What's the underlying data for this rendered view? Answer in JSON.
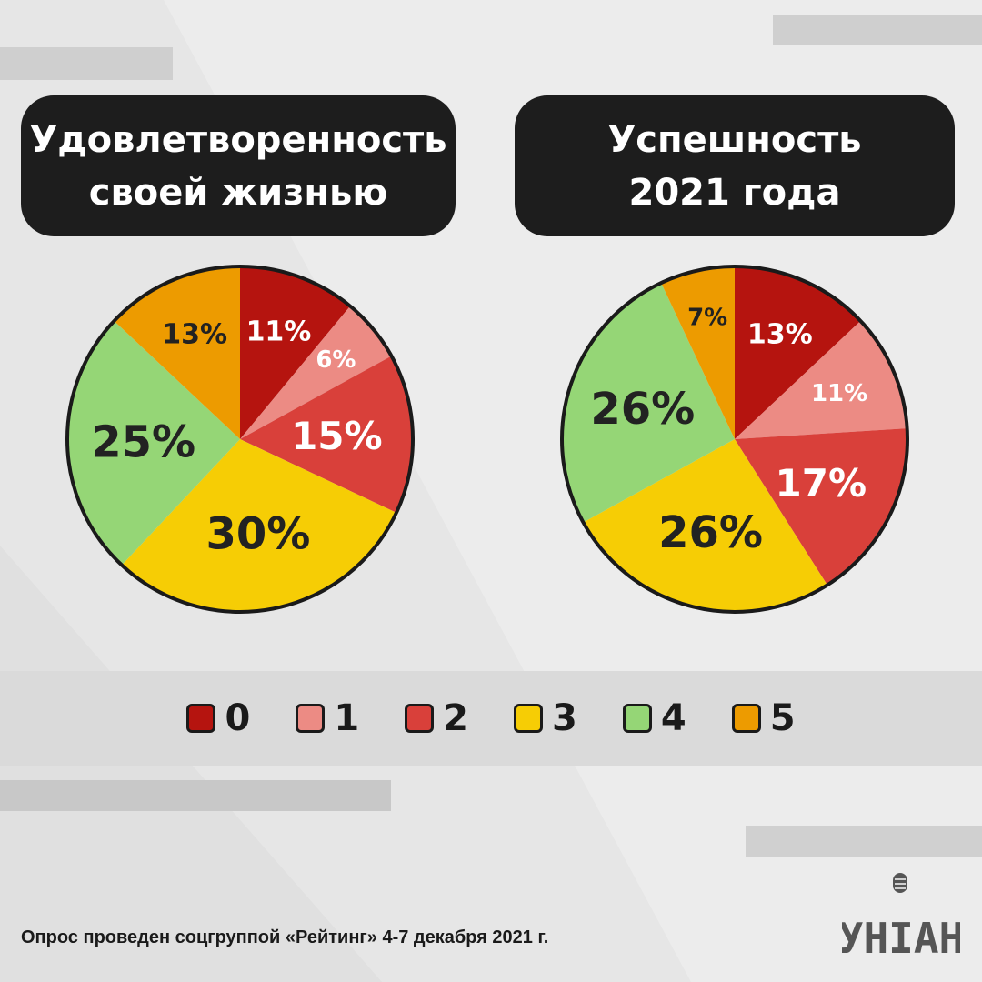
{
  "chart_data": [
    {
      "type": "pie",
      "title": "Удовлетворенность своей жизнью",
      "title_lines": [
        "Удовлетворенность",
        "своей жизнью"
      ],
      "categories": [
        "0",
        "1",
        "2",
        "3",
        "4",
        "5"
      ],
      "values": [
        11,
        6,
        15,
        30,
        25,
        13
      ],
      "labels": [
        "11%",
        "6%",
        "15%",
        "30%",
        "25%",
        "13%"
      ],
      "colors": [
        "#b5140f",
        "#ec8b84",
        "#d9403a",
        "#f6cd05",
        "#95d676",
        "#ed9b00"
      ],
      "label_colors": [
        "#ffffff",
        "#ffffff",
        "#ffffff",
        "#222222",
        "#222222",
        "#222222"
      ],
      "label_sizes": [
        30,
        26,
        42,
        48,
        48,
        30
      ]
    },
    {
      "type": "pie",
      "title": "Успешность 2021 года",
      "title_lines": [
        "Успешность",
        "2021 года"
      ],
      "categories": [
        "0",
        "1",
        "2",
        "3",
        "4",
        "5"
      ],
      "values": [
        13,
        11,
        17,
        26,
        26,
        7
      ],
      "labels": [
        "13%",
        "11%",
        "17%",
        "26%",
        "26%",
        "7%"
      ],
      "colors": [
        "#b5140f",
        "#ec8b84",
        "#d9403a",
        "#f6cd05",
        "#95d676",
        "#ed9b00"
      ],
      "label_colors": [
        "#ffffff",
        "#ffffff",
        "#ffffff",
        "#222222",
        "#222222",
        "#222222"
      ],
      "label_sizes": [
        30,
        26,
        42,
        48,
        48,
        26
      ]
    }
  ],
  "legend": {
    "items": [
      {
        "label": "0",
        "color": "#b5140f"
      },
      {
        "label": "1",
        "color": "#ec8b84"
      },
      {
        "label": "2",
        "color": "#d9403a"
      },
      {
        "label": "3",
        "color": "#f6cd05"
      },
      {
        "label": "4",
        "color": "#95d676"
      },
      {
        "label": "5",
        "color": "#ed9b00"
      }
    ]
  },
  "footer": "Опрос проведен соцгруппой «Рейтинг» 4-7 декабря 2021 г.",
  "logo": {
    "text": "УНІАН",
    "icon": "microphone-icon"
  }
}
